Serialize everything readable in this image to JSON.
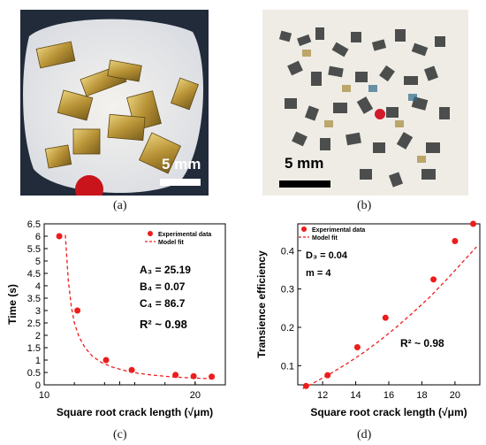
{
  "panels": {
    "a": {
      "label": "(a)",
      "scale_text": "5 mm"
    },
    "b": {
      "label": "(b)",
      "scale_text": "5 mm"
    },
    "c": {
      "label": "(c)"
    },
    "d": {
      "label": "(d)"
    }
  },
  "colors": {
    "data": "#ee1c1c",
    "fit": "#ee1c1c",
    "scalebar_a": "#ffffff",
    "scalebar_b": "#000000"
  },
  "chart_data": [
    {
      "id": "c",
      "type": "scatter",
      "xlabel": "Square root crack length (√μm)",
      "ylabel": "Time (s)",
      "xlim": [
        10,
        22
      ],
      "ylim": [
        0,
        6.5
      ],
      "xticks": [
        10,
        15,
        20
      ],
      "xtick_labels": [
        "10",
        "",
        "20"
      ],
      "xtick_minor": [
        12,
        14,
        16,
        18,
        20
      ],
      "yticks": [
        0,
        0.5,
        1,
        1.5,
        2,
        2.5,
        3,
        3.5,
        4,
        4.5,
        5,
        5.5,
        6,
        6.5
      ],
      "ytick_labels": [
        "0",
        "0.5",
        "1",
        "1.5",
        "2",
        "2.5",
        "3",
        "3.5",
        "4",
        "4.5",
        "5",
        "5.5",
        "6",
        "6.5"
      ],
      "legend": [
        "Experimental data",
        "Model fit"
      ],
      "legend_position": "top-right",
      "annotations": [
        "A₃ = 25.19",
        "B₄ = 0.07",
        "C₄ = 86.7",
        "R² ~ 0.98"
      ],
      "series": [
        {
          "name": "Experimental data",
          "kind": "points",
          "x": [
            11.0,
            12.2,
            14.1,
            15.8,
            18.7,
            19.9,
            21.1
          ],
          "y": [
            6.0,
            3.0,
            1.0,
            0.6,
            0.4,
            0.35,
            0.33
          ]
        },
        {
          "name": "Model fit",
          "kind": "dashed-line",
          "x": [
            11.4,
            11.6,
            11.8,
            12.0,
            12.3,
            12.7,
            13.2,
            13.8,
            14.5,
            15.3,
            16.2,
            17.2,
            18.3,
            19.4,
            20.5,
            21.3
          ],
          "y": [
            6.05,
            4.2,
            3.15,
            2.5,
            1.95,
            1.5,
            1.15,
            0.9,
            0.72,
            0.58,
            0.47,
            0.39,
            0.33,
            0.29,
            0.26,
            0.24
          ]
        }
      ]
    },
    {
      "id": "d",
      "type": "scatter",
      "xlabel": "Square root crack length (√μm)",
      "ylabel": "Transience efficiency",
      "xlim": [
        10.5,
        21.5
      ],
      "ylim": [
        0.05,
        0.47
      ],
      "xticks": [
        12,
        14,
        16,
        18,
        20
      ],
      "xtick_labels": [
        "12",
        "14",
        "16",
        "18",
        "20"
      ],
      "yticks": [
        0.1,
        0.2,
        0.3,
        0.4
      ],
      "ytick_labels": [
        "0.1",
        "0.2",
        "0.3",
        "0.4"
      ],
      "legend": [
        "Experimental data",
        "Model fit"
      ],
      "legend_position": "top-left",
      "annotations": [
        "D₃ = 0.04",
        "m = 4",
        "R² ~ 0.98"
      ],
      "series": [
        {
          "name": "Experimental data",
          "kind": "points",
          "x": [
            11.0,
            12.3,
            14.1,
            15.8,
            18.7,
            20.0,
            21.1
          ],
          "y": [
            0.047,
            0.075,
            0.148,
            0.225,
            0.325,
            0.425,
            0.47
          ]
        },
        {
          "name": "Model fit",
          "kind": "dashed-line",
          "x": [
            10.8,
            11.5,
            12.5,
            13.5,
            14.5,
            15.5,
            16.5,
            17.5,
            18.5,
            19.5,
            20.5,
            21.3
          ],
          "y": [
            0.04,
            0.056,
            0.08,
            0.106,
            0.135,
            0.167,
            0.202,
            0.24,
            0.28,
            0.325,
            0.372,
            0.41
          ]
        }
      ]
    }
  ]
}
